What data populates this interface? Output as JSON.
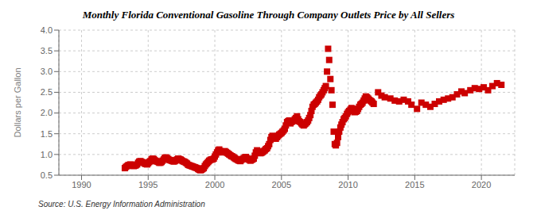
{
  "chart_data": {
    "type": "scatter",
    "title": "Monthly Florida Conventional Gasoline Through Company Outlets Price by All Sellers",
    "ylabel": "Dollars per Gallon",
    "source": "Source: U.S. Energy Information Administration",
    "color": "#CC0000",
    "marker": "square",
    "grid": true,
    "xlim": [
      1988.3,
      2022.5
    ],
    "xticks": [
      1990,
      1995,
      2000,
      2005,
      2010,
      2015,
      2020
    ],
    "ylim": [
      0.5,
      4.0
    ],
    "yticks": [
      0.5,
      {
        "value": 1.0,
        "label": "1.0"
      },
      1.5,
      {
        "value": 2.0,
        "label": "2.0"
      },
      2.5,
      {
        "value": 3.0,
        "label": "3.0"
      },
      3.5,
      {
        "value": 4.0,
        "label": "4.0"
      }
    ],
    "x": [
      1993.25,
      1993.33,
      1993.42,
      1993.5,
      1993.58,
      1993.67,
      1993.75,
      1993.83,
      1993.92,
      1994.0,
      1994.08,
      1994.17,
      1994.25,
      1994.33,
      1994.42,
      1994.5,
      1994.58,
      1994.67,
      1994.75,
      1994.83,
      1994.92,
      1995.0,
      1995.08,
      1995.17,
      1995.25,
      1995.33,
      1995.42,
      1995.5,
      1995.58,
      1995.67,
      1995.75,
      1995.83,
      1995.92,
      1996.0,
      1996.08,
      1996.17,
      1996.25,
      1996.33,
      1996.42,
      1996.5,
      1996.58,
      1996.67,
      1996.75,
      1996.83,
      1996.92,
      1997.0,
      1997.08,
      1997.17,
      1997.25,
      1997.33,
      1997.42,
      1997.5,
      1997.58,
      1997.67,
      1997.75,
      1997.83,
      1997.92,
      1998.0,
      1998.08,
      1998.17,
      1998.25,
      1998.33,
      1998.42,
      1998.5,
      1998.58,
      1998.67,
      1998.75,
      1998.83,
      1998.92,
      1999.0,
      1999.08,
      1999.17,
      1999.25,
      1999.33,
      1999.42,
      1999.5,
      1999.58,
      1999.67,
      1999.75,
      1999.83,
      1999.92,
      2000.0,
      2000.08,
      2000.17,
      2000.25,
      2000.33,
      2000.42,
      2000.5,
      2000.58,
      2000.67,
      2000.75,
      2000.83,
      2000.92,
      2001.0,
      2001.08,
      2001.17,
      2001.25,
      2001.33,
      2001.42,
      2001.5,
      2001.58,
      2001.67,
      2001.75,
      2001.83,
      2001.92,
      2002.0,
      2002.08,
      2002.17,
      2002.25,
      2002.33,
      2002.42,
      2002.5,
      2002.58,
      2002.67,
      2002.75,
      2002.83,
      2002.92,
      2003.0,
      2003.08,
      2003.17,
      2003.25,
      2003.33,
      2003.42,
      2003.5,
      2003.58,
      2003.67,
      2003.75,
      2003.83,
      2003.92,
      2004.0,
      2004.08,
      2004.17,
      2004.25,
      2004.33,
      2004.42,
      2004.5,
      2004.58,
      2004.67,
      2004.75,
      2004.83,
      2004.92,
      2005.0,
      2005.08,
      2005.17,
      2005.25,
      2005.33,
      2005.42,
      2005.5,
      2005.58,
      2005.67,
      2005.75,
      2005.83,
      2005.92,
      2006.0,
      2006.08,
      2006.17,
      2006.25,
      2006.33,
      2006.42,
      2006.5,
      2006.58,
      2006.67,
      2006.75,
      2006.83,
      2006.92,
      2007.0,
      2007.08,
      2007.17,
      2007.25,
      2007.33,
      2007.42,
      2007.5,
      2007.58,
      2007.67,
      2007.75,
      2007.83,
      2007.92,
      2008.0,
      2008.08,
      2008.17,
      2008.25,
      2008.33,
      2008.42,
      2008.5,
      2008.58,
      2008.67,
      2008.75,
      2008.83,
      2008.92,
      2009.0,
      2009.08,
      2009.17,
      2009.25,
      2009.33,
      2009.42,
      2009.5,
      2009.58,
      2009.67,
      2009.75,
      2009.83,
      2009.92,
      2010.0,
      2010.08,
      2010.17,
      2010.25,
      2010.33,
      2010.42,
      2010.5,
      2010.58,
      2010.67,
      2010.75,
      2010.83,
      2010.92,
      2011.0,
      2011.08,
      2011.17,
      2011.25,
      2011.33,
      2011.42,
      2011.5,
      2011.58,
      2011.67,
      2011.75,
      2011.83,
      2011.92,
      2012.25,
      2012.5,
      2012.75,
      2013.17,
      2013.5,
      2013.83,
      2014.17,
      2014.5,
      2014.75,
      2015.17,
      2015.5,
      2015.83,
      2016.17,
      2016.5,
      2016.83,
      2017.17,
      2017.5,
      2017.83,
      2018.17,
      2018.5,
      2018.75,
      2019.17,
      2019.5,
      2019.83,
      2020.17,
      2020.5,
      2020.83,
      2021.17,
      2021.5
    ],
    "values": [
      0.67,
      0.7,
      0.72,
      0.74,
      0.75,
      0.76,
      0.74,
      0.73,
      0.72,
      0.73,
      0.74,
      0.76,
      0.8,
      0.83,
      0.84,
      0.82,
      0.81,
      0.8,
      0.78,
      0.77,
      0.76,
      0.79,
      0.82,
      0.84,
      0.88,
      0.9,
      0.89,
      0.86,
      0.84,
      0.83,
      0.82,
      0.8,
      0.8,
      0.82,
      0.85,
      0.88,
      0.92,
      0.93,
      0.91,
      0.89,
      0.87,
      0.86,
      0.85,
      0.84,
      0.83,
      0.84,
      0.86,
      0.88,
      0.9,
      0.89,
      0.88,
      0.86,
      0.84,
      0.83,
      0.82,
      0.8,
      0.78,
      0.75,
      0.74,
      0.73,
      0.72,
      0.71,
      0.7,
      0.69,
      0.68,
      0.67,
      0.65,
      0.63,
      0.62,
      0.63,
      0.65,
      0.67,
      0.72,
      0.76,
      0.79,
      0.82,
      0.85,
      0.87,
      0.88,
      0.88,
      0.9,
      0.95,
      1.0,
      1.05,
      1.1,
      1.12,
      1.08,
      1.06,
      1.05,
      1.07,
      1.08,
      1.06,
      1.04,
      1.02,
      1.0,
      0.98,
      0.96,
      0.95,
      0.93,
      0.91,
      0.89,
      0.88,
      0.86,
      0.85,
      0.84,
      0.87,
      0.89,
      0.91,
      0.93,
      0.94,
      0.91,
      0.89,
      0.87,
      0.85,
      0.87,
      0.88,
      0.9,
      0.97,
      1.05,
      1.1,
      1.07,
      1.05,
      1.03,
      1.04,
      1.06,
      1.08,
      1.1,
      1.13,
      1.15,
      1.2,
      1.25,
      1.35,
      1.42,
      1.45,
      1.42,
      1.4,
      1.38,
      1.42,
      1.45,
      1.48,
      1.5,
      1.52,
      1.55,
      1.58,
      1.62,
      1.7,
      1.78,
      1.8,
      1.82,
      1.75,
      1.78,
      1.8,
      1.82,
      1.85,
      1.88,
      1.92,
      1.85,
      1.8,
      1.78,
      1.75,
      1.72,
      1.7,
      1.73,
      1.75,
      1.78,
      1.82,
      1.88,
      1.95,
      2.05,
      2.15,
      2.2,
      2.22,
      2.25,
      2.28,
      2.32,
      2.38,
      2.42,
      2.45,
      2.5,
      2.55,
      2.6,
      2.65,
      3.0,
      3.55,
      3.28,
      2.82,
      2.55,
      2.2,
      1.55,
      1.25,
      1.22,
      1.28,
      1.42,
      1.55,
      1.65,
      1.72,
      1.78,
      1.85,
      1.88,
      1.92,
      1.98,
      2.02,
      2.05,
      2.08,
      2.12,
      2.1,
      2.05,
      2.02,
      2.03,
      2.05,
      2.1,
      2.15,
      2.2,
      2.22,
      2.25,
      2.3,
      2.35,
      2.4,
      2.38,
      2.35,
      2.32,
      2.3,
      2.28,
      2.25,
      2.22,
      2.5,
      2.42,
      2.38,
      2.35,
      2.3,
      2.28,
      2.32,
      2.28,
      2.2,
      2.1,
      2.25,
      2.2,
      2.15,
      2.22,
      2.28,
      2.32,
      2.35,
      2.38,
      2.45,
      2.52,
      2.48,
      2.55,
      2.6,
      2.58,
      2.62,
      2.55,
      2.65,
      2.72,
      2.68
    ]
  }
}
